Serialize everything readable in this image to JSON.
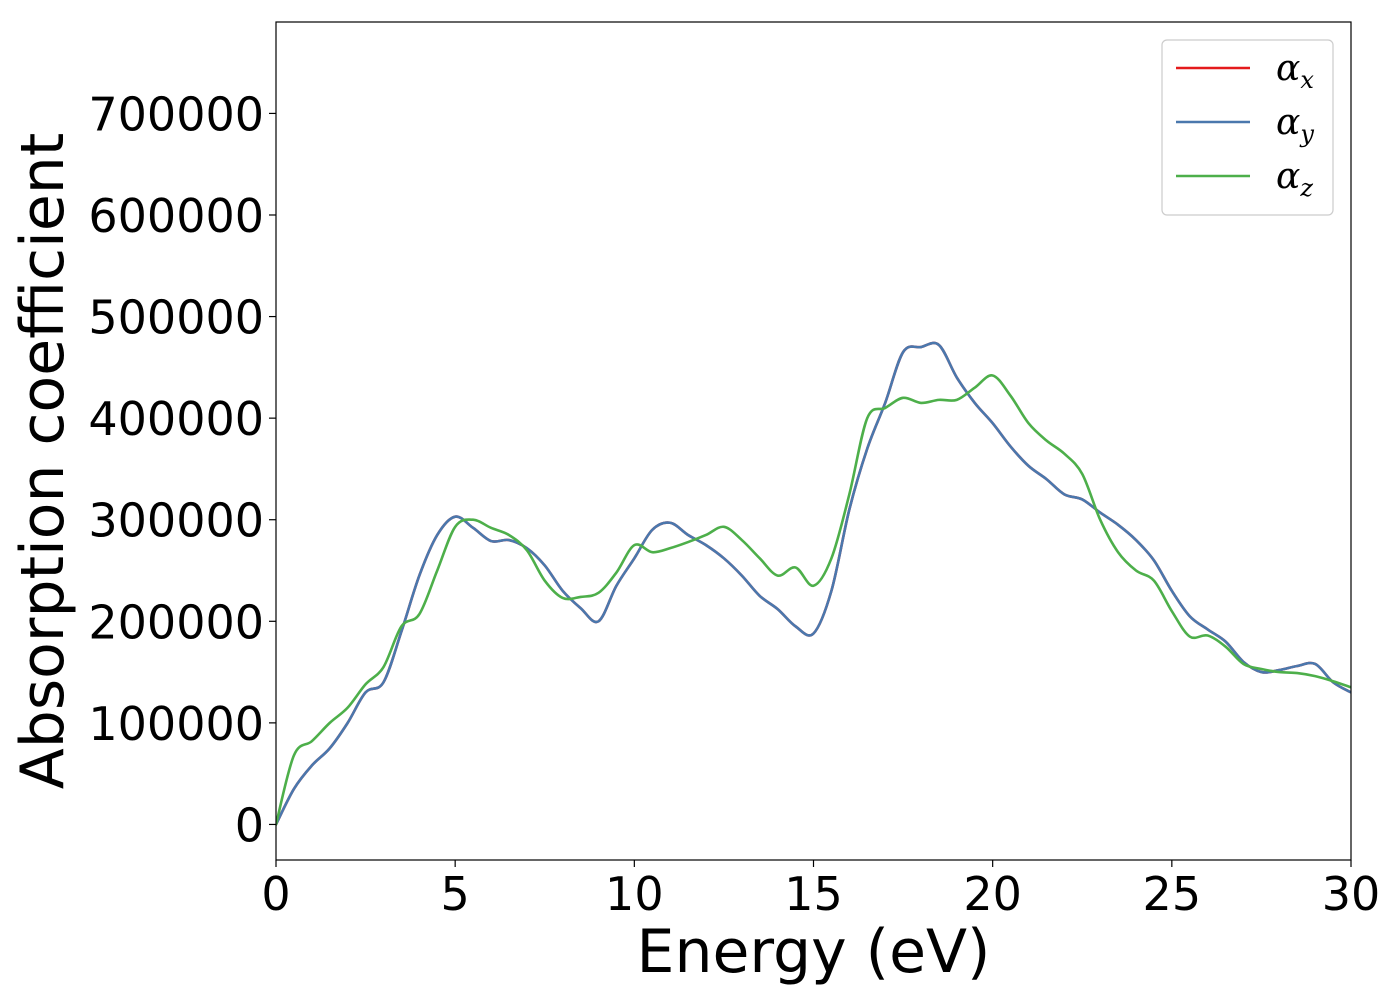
{
  "chart_data": {
    "type": "line",
    "title": "",
    "xlabel": "Energy (eV)",
    "ylabel": "Absorption coefficient",
    "xlim": [
      0,
      30
    ],
    "ylim": [
      -35000,
      790000
    ],
    "xticks": [
      0,
      5,
      10,
      15,
      20,
      25,
      30
    ],
    "xtick_labels": [
      "0",
      "5",
      "10",
      "15",
      "20",
      "25",
      "30"
    ],
    "yticks": [
      0,
      100000,
      200000,
      300000,
      400000,
      500000,
      600000,
      700000
    ],
    "ytick_labels": [
      "0",
      "100000",
      "200000",
      "300000",
      "400000",
      "500000",
      "600000",
      "700000"
    ],
    "grid": false,
    "legend_position": "top-right",
    "x": [
      0,
      0.5,
      1,
      1.5,
      2,
      2.5,
      3,
      3.5,
      4,
      4.5,
      5,
      5.5,
      6,
      6.5,
      7,
      7.5,
      8,
      8.5,
      9,
      9.5,
      10,
      10.5,
      11,
      11.5,
      12,
      12.5,
      13,
      13.5,
      14,
      14.5,
      15,
      15.5,
      16,
      16.5,
      17,
      17.5,
      18,
      18.5,
      19,
      19.5,
      20,
      20.5,
      21,
      21.5,
      22,
      22.5,
      23,
      23.5,
      24,
      24.5,
      25,
      25.5,
      26,
      26.5,
      27,
      27.5,
      28,
      28.5,
      29,
      29.5,
      30
    ],
    "series": [
      {
        "name": "α",
        "subscript": "x",
        "color": "#e41a1c",
        "values": [
          0,
          35000,
          58000,
          75000,
          100000,
          130000,
          140000,
          190000,
          245000,
          285000,
          303000,
          292000,
          279000,
          280000,
          272000,
          255000,
          230000,
          213000,
          200000,
          235000,
          262000,
          290000,
          297000,
          285000,
          275000,
          262000,
          245000,
          225000,
          212000,
          195000,
          188000,
          230000,
          310000,
          370000,
          415000,
          465000,
          470000,
          472000,
          440000,
          415000,
          395000,
          372000,
          353000,
          340000,
          325000,
          320000,
          307000,
          295000,
          280000,
          260000,
          230000,
          205000,
          192000,
          180000,
          160000,
          150000,
          152000,
          156000,
          158000,
          140000,
          130000
        ]
      },
      {
        "name": "α",
        "subscript": "y",
        "color": "#4a78ad",
        "values": [
          0,
          35000,
          58000,
          75000,
          100000,
          130000,
          140000,
          190000,
          245000,
          285000,
          303000,
          292000,
          279000,
          280000,
          272000,
          255000,
          230000,
          213000,
          200000,
          235000,
          262000,
          290000,
          297000,
          285000,
          275000,
          262000,
          245000,
          225000,
          212000,
          195000,
          188000,
          230000,
          310000,
          370000,
          415000,
          465000,
          470000,
          472000,
          440000,
          415000,
          395000,
          372000,
          353000,
          340000,
          325000,
          320000,
          307000,
          295000,
          280000,
          260000,
          230000,
          205000,
          192000,
          180000,
          160000,
          150000,
          152000,
          156000,
          158000,
          140000,
          130000
        ]
      },
      {
        "name": "α",
        "subscript": "z",
        "color": "#4daf4a",
        "values": [
          0,
          68000,
          82000,
          100000,
          115000,
          138000,
          155000,
          195000,
          207000,
          250000,
          293000,
          300000,
          292000,
          285000,
          270000,
          240000,
          223000,
          224000,
          228000,
          248000,
          275000,
          268000,
          272000,
          278000,
          285000,
          293000,
          280000,
          262000,
          245000,
          253000,
          235000,
          262000,
          325000,
          400000,
          410000,
          420000,
          415000,
          418000,
          418000,
          430000,
          442000,
          422000,
          395000,
          378000,
          365000,
          345000,
          300000,
          268000,
          250000,
          240000,
          210000,
          185000,
          186000,
          175000,
          158000,
          153000,
          150000,
          149000,
          146000,
          141000,
          135000
        ]
      }
    ]
  }
}
